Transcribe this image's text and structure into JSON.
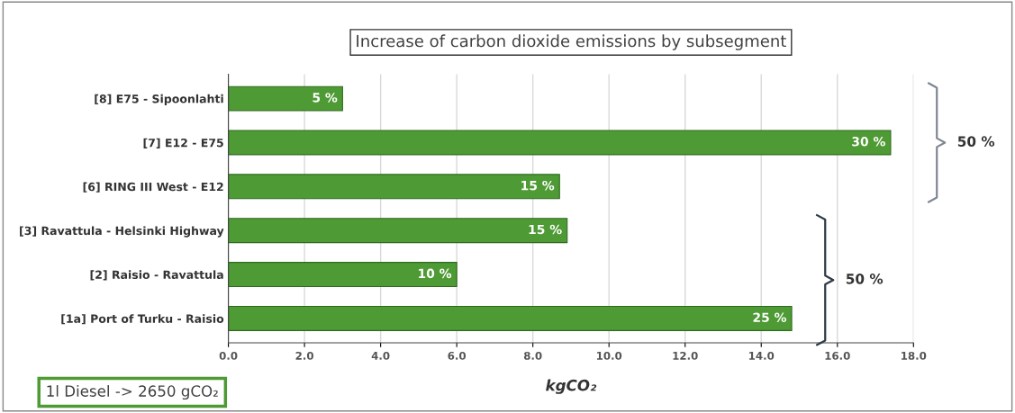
{
  "chart_data": {
    "type": "bar",
    "orientation": "horizontal",
    "title": "Increase of carbon dioxide emissions by subsegment",
    "xlabel": "kgCO₂",
    "categories": [
      "[8] E75 - Sipoonlahti",
      "[7] E12 - E75",
      "[6] RING III West - E12",
      "[3] Ravattula - Helsinki Highway",
      "[2] Raisio - Ravattula",
      "[1a] Port of Turku - Raisio"
    ],
    "values": [
      3.0,
      17.4,
      8.7,
      8.9,
      6.0,
      14.8
    ],
    "color": "#4e9a34",
    "xlim": [
      0,
      18
    ],
    "xticks": [
      {
        "value": 0,
        "label": "0.0"
      },
      {
        "value": 2,
        "label": "2.0"
      },
      {
        "value": 4,
        "label": "4.0"
      },
      {
        "value": 6,
        "label": "6.0"
      },
      {
        "value": 8,
        "label": "8.0"
      },
      {
        "value": 10,
        "label": "10.0"
      },
      {
        "value": 12,
        "label": "12.0"
      },
      {
        "value": 14,
        "label": "14.0"
      },
      {
        "value": 16,
        "label": "16.0"
      },
      {
        "value": 18,
        "label": "18.0"
      }
    ],
    "grid": "x",
    "annotations": [
      "50 %",
      "50 %",
      "1l Diesel -> 2650 gCO₂",
      {
        "text": "5 %",
        "x": 3.0,
        "y": "[8] E75 - Sipoonlahti"
      },
      {
        "text": "30 %",
        "x": 17.4,
        "y": "[7] E12 - E75"
      },
      {
        "text": "15 %",
        "x": 8.7,
        "y": "[6] RING III West - E12"
      },
      {
        "text": "15 %",
        "x": 8.9,
        "y": "[3] Ravattula - Helsinki Highway"
      },
      {
        "text": "10 %",
        "x": 6.0,
        "y": "[2] Raisio - Ravattula"
      },
      {
        "text": "25 %",
        "x": 14.8,
        "y": "[1a] Port of Turku - Raisio"
      }
    ]
  }
}
